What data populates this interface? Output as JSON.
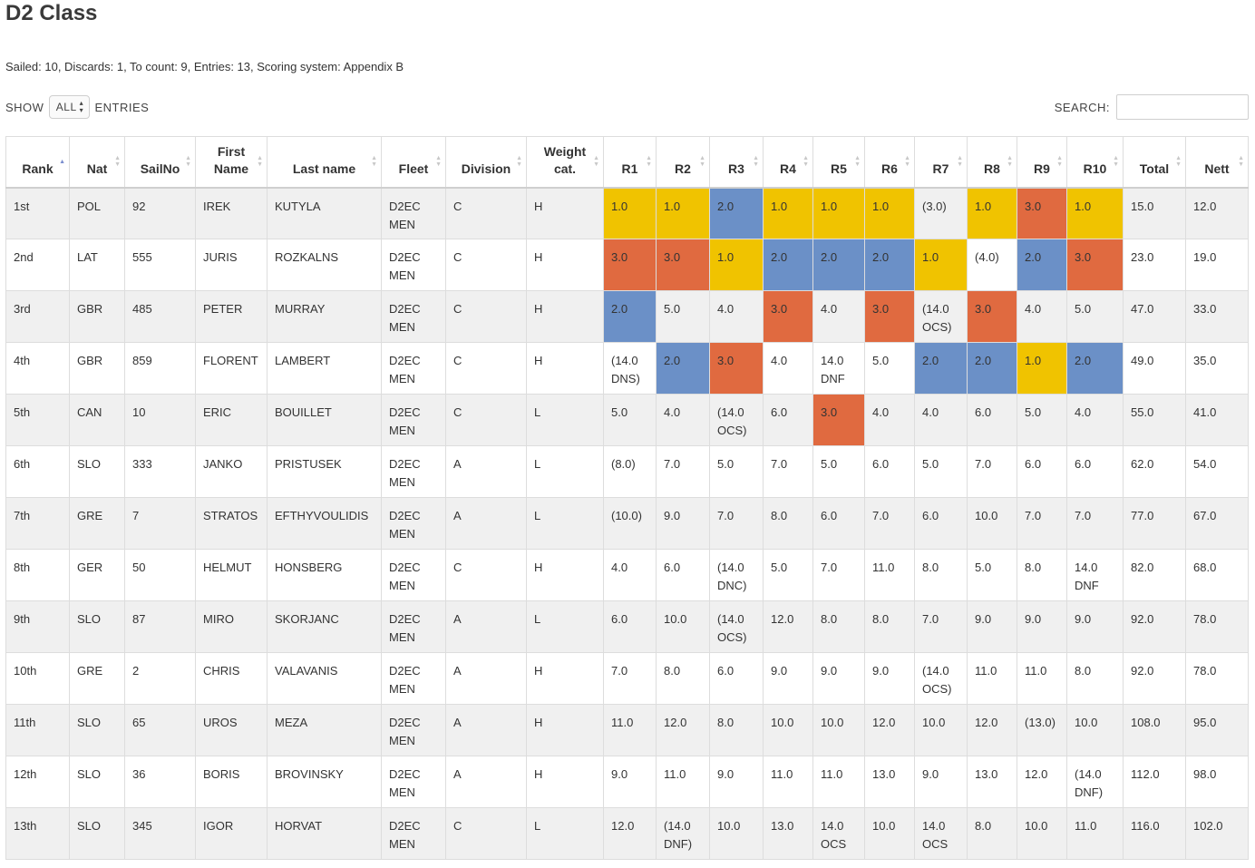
{
  "page": {
    "title": "D2 Class",
    "meta": "Sailed: 10, Discards: 1, To count: 9, Entries: 13, Scoring system: Appendix B"
  },
  "controls": {
    "show_label": "SHOW",
    "show_value": "ALL",
    "entries_label": "ENTRIES",
    "search_label": "SEARCH:",
    "search_value": ""
  },
  "colors": {
    "gold": "#f0c300",
    "silver": "#6b90c7",
    "bronze": "#e06a40",
    "sort_active": "#7b8fcf"
  },
  "table": {
    "columns": [
      "Rank",
      "Nat",
      "SailNo",
      "First Name",
      "Last name",
      "Fleet",
      "Division",
      "Weight cat.",
      "R1",
      "R2",
      "R3",
      "R4",
      "R5",
      "R6",
      "R7",
      "R8",
      "R9",
      "R10",
      "Total",
      "Nett"
    ],
    "sorted_column": "Rank",
    "rows": [
      {
        "rank": "1st",
        "nat": "POL",
        "sailno": "92",
        "first": "IREK",
        "last": "KUTYLA",
        "fleet": "D2EC MEN",
        "division": "C",
        "weight": "H",
        "races": [
          "1.0",
          "1.0",
          "2.0",
          "1.0",
          "1.0",
          "1.0",
          "(3.0)",
          "1.0",
          "3.0",
          "1.0"
        ],
        "medals": [
          "gold",
          "gold",
          "silver",
          "gold",
          "gold",
          "gold",
          "",
          "gold",
          "bronze",
          "gold"
        ],
        "total": "15.0",
        "nett": "12.0"
      },
      {
        "rank": "2nd",
        "nat": "LAT",
        "sailno": "555",
        "first": "JURIS",
        "last": "ROZKALNS",
        "fleet": "D2EC MEN",
        "division": "C",
        "weight": "H",
        "races": [
          "3.0",
          "3.0",
          "1.0",
          "2.0",
          "2.0",
          "2.0",
          "1.0",
          "(4.0)",
          "2.0",
          "3.0"
        ],
        "medals": [
          "bronze",
          "bronze",
          "gold",
          "silver",
          "silver",
          "silver",
          "gold",
          "",
          "silver",
          "bronze"
        ],
        "total": "23.0",
        "nett": "19.0"
      },
      {
        "rank": "3rd",
        "nat": "GBR",
        "sailno": "485",
        "first": "PETER",
        "last": "MURRAY",
        "fleet": "D2EC MEN",
        "division": "C",
        "weight": "H",
        "races": [
          "2.0",
          "5.0",
          "4.0",
          "3.0",
          "4.0",
          "3.0",
          "(14.0 OCS)",
          "3.0",
          "4.0",
          "5.0"
        ],
        "medals": [
          "silver",
          "",
          "",
          "bronze",
          "",
          "bronze",
          "",
          "bronze",
          "",
          ""
        ],
        "total": "47.0",
        "nett": "33.0"
      },
      {
        "rank": "4th",
        "nat": "GBR",
        "sailno": "859",
        "first": "FLORENT",
        "last": "LAMBERT",
        "fleet": "D2EC MEN",
        "division": "C",
        "weight": "H",
        "races": [
          "(14.0 DNS)",
          "2.0",
          "3.0",
          "4.0",
          "14.0 DNF",
          "5.0",
          "2.0",
          "2.0",
          "1.0",
          "2.0"
        ],
        "medals": [
          "",
          "silver",
          "bronze",
          "",
          "",
          "",
          "silver",
          "silver",
          "gold",
          "silver"
        ],
        "total": "49.0",
        "nett": "35.0",
        "first_link": true
      },
      {
        "rank": "5th",
        "nat": "CAN",
        "sailno": "10",
        "first": "ERIC",
        "last": "BOUILLET",
        "fleet": "D2EC MEN",
        "division": "C",
        "weight": "L",
        "races": [
          "5.0",
          "4.0",
          "(14.0 OCS)",
          "6.0",
          "3.0",
          "4.0",
          "4.0",
          "6.0",
          "5.0",
          "4.0"
        ],
        "medals": [
          "",
          "",
          "",
          "",
          "bronze",
          "",
          "",
          "",
          "",
          ""
        ],
        "total": "55.0",
        "nett": "41.0"
      },
      {
        "rank": "6th",
        "nat": "SLO",
        "sailno": "333",
        "first": "JANKO",
        "last": "PRISTUSEK",
        "fleet": "D2EC MEN",
        "division": "A",
        "weight": "L",
        "races": [
          "(8.0)",
          "7.0",
          "5.0",
          "7.0",
          "5.0",
          "6.0",
          "5.0",
          "7.0",
          "6.0",
          "6.0"
        ],
        "medals": [
          "",
          "",
          "",
          "",
          "",
          "",
          "",
          "",
          "",
          ""
        ],
        "total": "62.0",
        "nett": "54.0"
      },
      {
        "rank": "7th",
        "nat": "GRE",
        "sailno": "7",
        "first": "STRATOS",
        "last": "EFTHYVOULIDIS",
        "fleet": "D2EC MEN",
        "division": "A",
        "weight": "L",
        "races": [
          "(10.0)",
          "9.0",
          "7.0",
          "8.0",
          "6.0",
          "7.0",
          "6.0",
          "10.0",
          "7.0",
          "7.0"
        ],
        "medals": [
          "",
          "",
          "",
          "",
          "",
          "",
          "",
          "",
          "",
          ""
        ],
        "total": "77.0",
        "nett": "67.0"
      },
      {
        "rank": "8th",
        "nat": "GER",
        "sailno": "50",
        "first": "HELMUT",
        "last": "HONSBERG",
        "fleet": "D2EC MEN",
        "division": "C",
        "weight": "H",
        "races": [
          "4.0",
          "6.0",
          "(14.0 DNC)",
          "5.0",
          "7.0",
          "11.0",
          "8.0",
          "5.0",
          "8.0",
          "14.0 DNF"
        ],
        "medals": [
          "",
          "",
          "",
          "",
          "",
          "",
          "",
          "",
          "",
          ""
        ],
        "total": "82.0",
        "nett": "68.0"
      },
      {
        "rank": "9th",
        "nat": "SLO",
        "sailno": "87",
        "first": "MIRO",
        "last": "SKORJANC",
        "fleet": "D2EC MEN",
        "division": "A",
        "weight": "L",
        "races": [
          "6.0",
          "10.0",
          "(14.0 OCS)",
          "12.0",
          "8.0",
          "8.0",
          "7.0",
          "9.0",
          "9.0",
          "9.0"
        ],
        "medals": [
          "",
          "",
          "",
          "",
          "",
          "",
          "",
          "",
          "",
          ""
        ],
        "total": "92.0",
        "nett": "78.0"
      },
      {
        "rank": "10th",
        "nat": "GRE",
        "sailno": "2",
        "first": "CHRIS",
        "last": "VALAVANIS",
        "fleet": "D2EC MEN",
        "division": "A",
        "weight": "H",
        "races": [
          "7.0",
          "8.0",
          "6.0",
          "9.0",
          "9.0",
          "9.0",
          "(14.0 OCS)",
          "11.0",
          "11.0",
          "8.0"
        ],
        "medals": [
          "",
          "",
          "",
          "",
          "",
          "",
          "",
          "",
          "",
          ""
        ],
        "total": "92.0",
        "nett": "78.0"
      },
      {
        "rank": "11th",
        "nat": "SLO",
        "sailno": "65",
        "first": "UROS",
        "last": "MEZA",
        "fleet": "D2EC MEN",
        "division": "A",
        "weight": "H",
        "races": [
          "11.0",
          "12.0",
          "8.0",
          "10.0",
          "10.0",
          "12.0",
          "10.0",
          "12.0",
          "(13.0)",
          "10.0"
        ],
        "medals": [
          "",
          "",
          "",
          "",
          "",
          "",
          "",
          "",
          "",
          ""
        ],
        "total": "108.0",
        "nett": "95.0"
      },
      {
        "rank": "12th",
        "nat": "SLO",
        "sailno": "36",
        "first": "BORIS",
        "last": "BROVINSKY",
        "fleet": "D2EC MEN",
        "division": "A",
        "weight": "H",
        "races": [
          "9.0",
          "11.0",
          "9.0",
          "11.0",
          "11.0",
          "13.0",
          "9.0",
          "13.0",
          "12.0",
          "(14.0 DNF)"
        ],
        "medals": [
          "",
          "",
          "",
          "",
          "",
          "",
          "",
          "",
          "",
          ""
        ],
        "total": "112.0",
        "nett": "98.0"
      },
      {
        "rank": "13th",
        "nat": "SLO",
        "sailno": "345",
        "first": "IGOR",
        "last": "HORVAT",
        "fleet": "D2EC MEN",
        "division": "C",
        "weight": "L",
        "races": [
          "12.0",
          "(14.0 DNF)",
          "10.0",
          "13.0",
          "14.0 OCS",
          "10.0",
          "14.0 OCS",
          "8.0",
          "10.0",
          "11.0"
        ],
        "medals": [
          "",
          "",
          "",
          "",
          "",
          "",
          "",
          "",
          "",
          ""
        ],
        "total": "116.0",
        "nett": "102.0"
      }
    ]
  }
}
